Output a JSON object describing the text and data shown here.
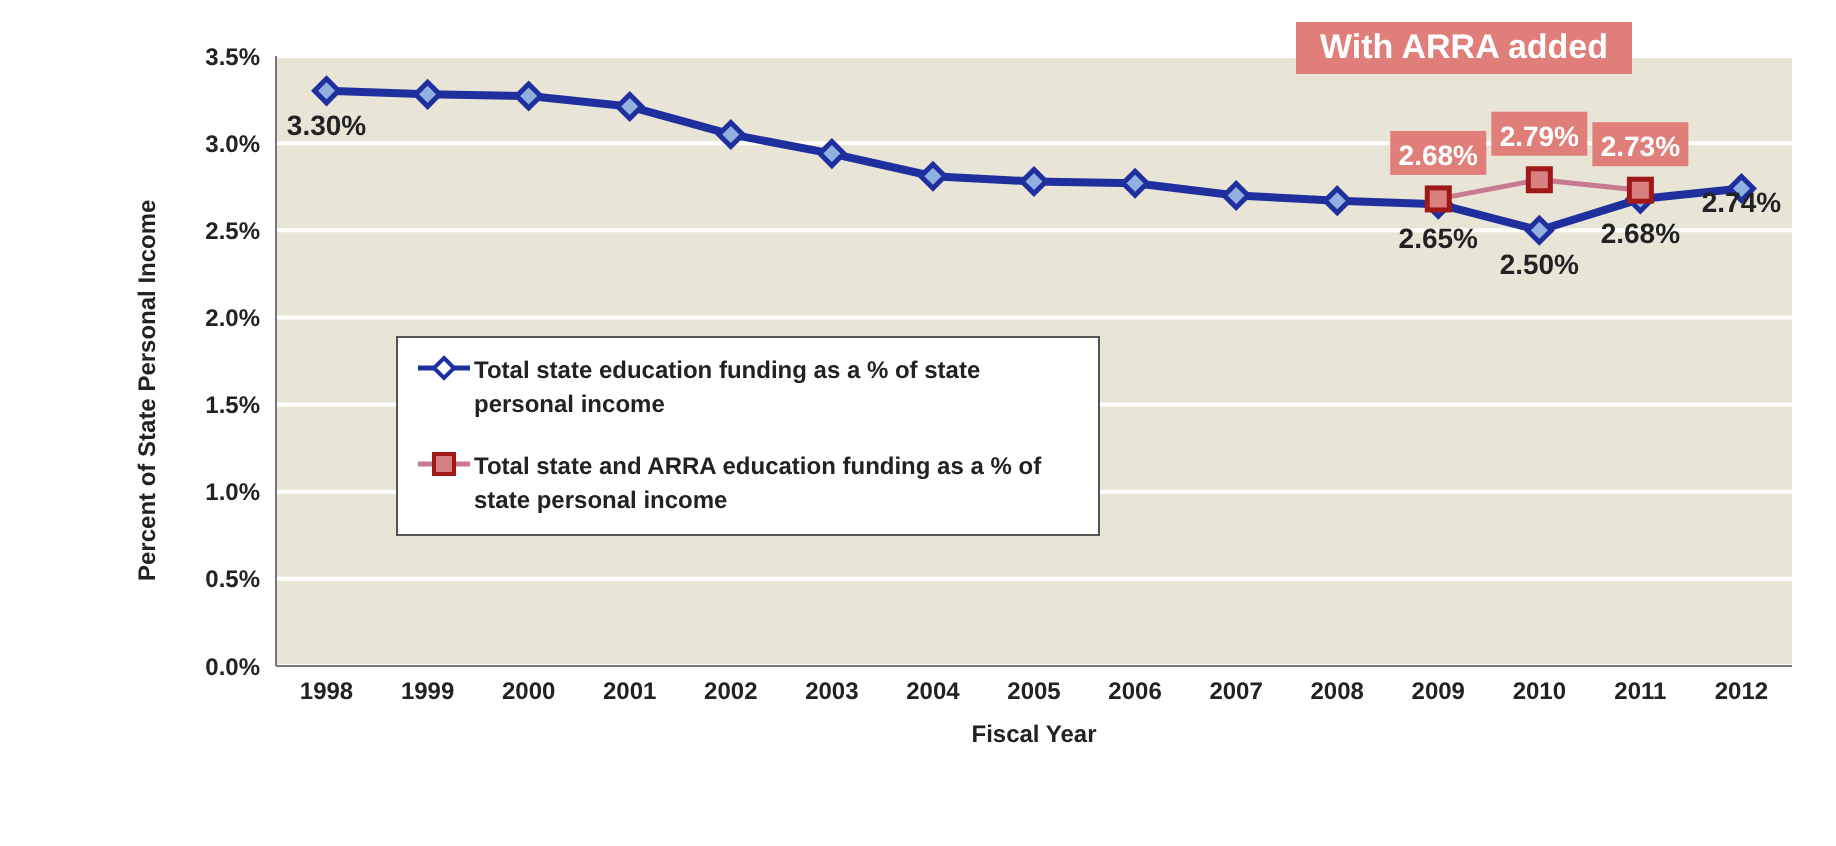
{
  "chart_data": {
    "type": "line",
    "xlabel": "Fiscal Year",
    "ylabel": "Percent of State Personal Income",
    "categories": [
      "1998",
      "1999",
      "2000",
      "2001",
      "2002",
      "2003",
      "2004",
      "2005",
      "2006",
      "2007",
      "2008",
      "2009",
      "2010",
      "2011",
      "2012"
    ],
    "series": [
      {
        "name": "Total state education funding as a % of state personal income",
        "color": "#1f2f9e",
        "marker": "diamond",
        "values": [
          3.3,
          3.28,
          3.27,
          3.21,
          3.05,
          2.94,
          2.81,
          2.78,
          2.77,
          2.7,
          2.67,
          2.65,
          2.5,
          2.68,
          2.74
        ],
        "value_labels": [
          "3.30%",
          null,
          null,
          null,
          null,
          null,
          null,
          null,
          null,
          null,
          null,
          "2.65%",
          "2.50%",
          "2.68%",
          "2.74%"
        ]
      },
      {
        "name": "Total state and ARRA education funding as a % of state personal income",
        "color": "#c87a90",
        "marker": "square",
        "values": [
          null,
          null,
          null,
          null,
          null,
          null,
          null,
          null,
          null,
          null,
          null,
          2.68,
          2.79,
          2.73,
          null
        ],
        "value_labels": [
          null,
          null,
          null,
          null,
          null,
          null,
          null,
          null,
          null,
          null,
          null,
          "2.68%",
          "2.79%",
          "2.73%",
          null
        ]
      }
    ],
    "ylim": [
      0,
      3.5
    ],
    "yticks": [
      {
        "value": 0,
        "label": "0.0%"
      },
      {
        "value": 0.5,
        "label": "0.5%"
      },
      {
        "value": 1,
        "label": "1.0%"
      },
      {
        "value": 1.5,
        "label": "1.5%"
      },
      {
        "value": 2,
        "label": "2.0%"
      },
      {
        "value": 2.5,
        "label": "2.5%"
      },
      {
        "value": 3,
        "label": "3.0%"
      },
      {
        "value": 3.5,
        "label": "3.5%"
      }
    ],
    "grid": "y",
    "legend": "left",
    "line_style": "solid",
    "annotations": [
      "With ARRA added"
    ]
  }
}
